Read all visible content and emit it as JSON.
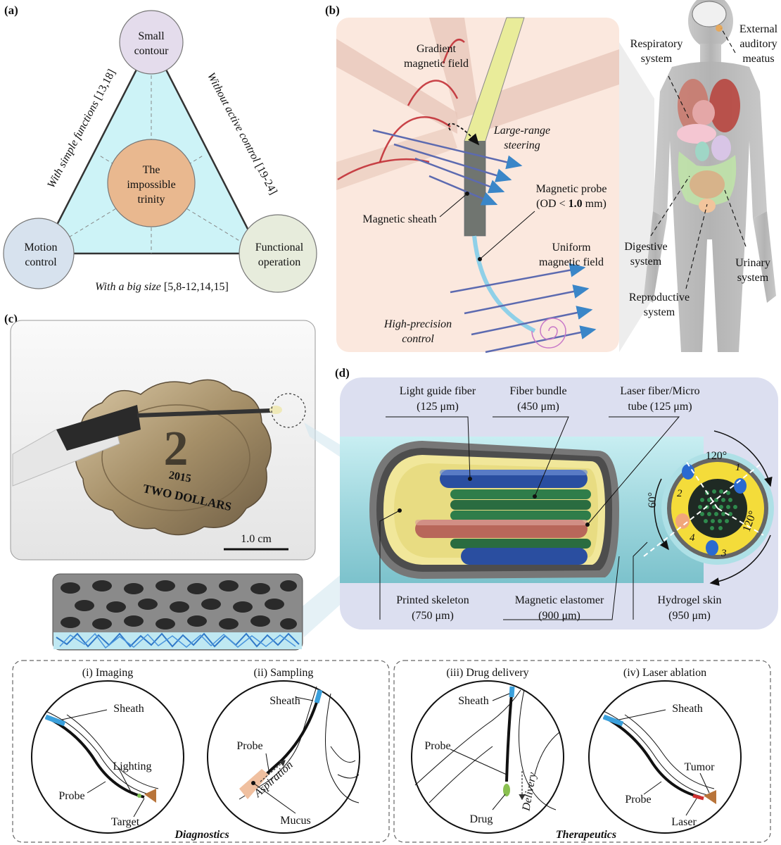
{
  "panel_a": {
    "label": "(a)",
    "top_circle": [
      "Small",
      "contour"
    ],
    "left_circle": [
      "Motion",
      "control"
    ],
    "right_circle": [
      "Functional",
      "operation"
    ],
    "center_circle": [
      "The",
      "impossible",
      "trinity"
    ],
    "left_edge_text": "With simple functions",
    "left_edge_ref": "[13,18]",
    "right_edge_text": "Without active control",
    "right_edge_ref": "[19-24]",
    "bottom_edge_text": "With a big size",
    "bottom_edge_ref": "[5,8-12,14,15]"
  },
  "panel_b": {
    "label": "(b)",
    "gradient_field": [
      "Gradient",
      "magnetic field"
    ],
    "large_range": [
      "Large-range",
      "steering"
    ],
    "magnetic_sheath": "Magnetic sheath",
    "probe_line1": "Magnetic probe",
    "probe_line2_pre": "(OD < ",
    "probe_line2_bold": "1.0",
    "probe_line2_post": " mm)",
    "uniform_field": [
      "Uniform",
      "magnetic field"
    ],
    "high_precision": [
      "High-precision",
      "control"
    ],
    "respiratory": [
      "Respiratory",
      "system"
    ],
    "auditory": [
      "External",
      "auditory",
      "meatus"
    ],
    "digestive": [
      "Digestive",
      "system"
    ],
    "urinary": [
      "Urinary",
      "system"
    ],
    "reproductive": [
      "Reproductive",
      "system"
    ]
  },
  "panel_c": {
    "label": "(c)",
    "scale_bar": "1.0 cm",
    "coin_year": "2015",
    "coin_text": "TWO DOLLARS",
    "coin_number": "2"
  },
  "panel_d": {
    "label": "(d)",
    "light_guide": [
      "Light guide fiber",
      "(125 μm)"
    ],
    "fiber_bundle": [
      "Fiber bundle",
      "(450 μm)"
    ],
    "laser_fiber": [
      "Laser fiber/Micro",
      "tube (125 μm)"
    ],
    "printed_skeleton": [
      "Printed skeleton",
      "(750 μm)"
    ],
    "magnetic_elastomer": [
      "Magnetic elastomer",
      "(900 μm)"
    ],
    "hydrogel_skin": [
      "Hydrogel skin",
      "(950 μm)"
    ],
    "angle_top": "120°",
    "angle_right": "120°",
    "angle_left": "60°",
    "channels": [
      "1",
      "2",
      "3",
      "4"
    ]
  },
  "panel_e": {
    "imaging": "(i) Imaging",
    "sampling": "(ii) Sampling",
    "drug_delivery": "(iii) Drug delivery",
    "laser_ablation": "(iv) Laser ablation",
    "diagnostics": "Diagnostics",
    "therapeutics": "Therapeutics",
    "i_sheath": "Sheath",
    "i_lighting": "Lighting",
    "i_probe": "Probe",
    "i_target": "Target",
    "ii_sheath": "Sheath",
    "ii_probe": "Probe",
    "ii_aspiration": "Aspiration",
    "ii_mucus": "Mucus",
    "iii_sheath": "Sheath",
    "iii_probe": "Probe",
    "iii_delivery": "Delivery",
    "iii_drug": "Drug",
    "iv_sheath": "Sheath",
    "iv_tumor": "Tumor",
    "iv_probe": "Probe",
    "iv_laser": "Laser"
  },
  "colors": {
    "triangle_fill": "#cdf3f7",
    "trinity_fill": "#e9b88f",
    "panel_b_bg": "#fbe8de",
    "panel_d_bg": "#dcdff0",
    "tube_cyan": "#aee0e6",
    "skeleton_yellow": "#f1e79a",
    "fiber_blue": "#2a4ea0",
    "fiber_green": "#2f7d4a",
    "fiber_red": "#b8675a",
    "arrow_blue": "#3a86c8",
    "field_red": "#c0262e"
  }
}
